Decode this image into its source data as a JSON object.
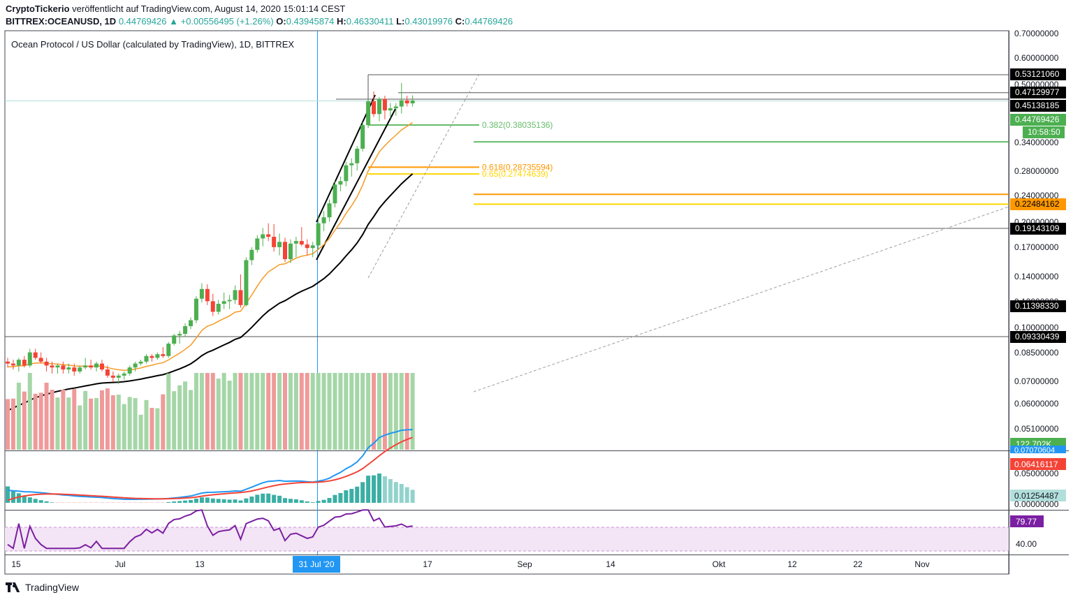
{
  "header": {
    "publisher": "CryptoTickerio",
    "published": "veröffentlicht auf TradingView.com, August 14, 2020 15:01:14 CEST",
    "symbol": "BITTREX:OCEANUSD, 1D",
    "last": "0.44769426",
    "change_arrow": "▲",
    "change": "+0.00556495 (+1.26%)",
    "o_label": "O:",
    "o": "0.43945874",
    "h_label": "H:",
    "h": "0.46330411",
    "l_label": "L:",
    "l": "0.43019976",
    "c_label": "C:",
    "c": "0.44769426"
  },
  "footer": {
    "brand": "TradingView"
  },
  "colors": {
    "up": "#26a69a",
    "down": "#ef5350",
    "candle_up": "#4caf50",
    "candle_down": "#f44336",
    "ma_short": "#f59a23",
    "ma_long": "#000000",
    "fib_382": "#66bb6a",
    "fib_618": "#ff9800",
    "fib_65": "#ffd600",
    "macd": "#2196f3",
    "signal": "#f44336",
    "rsi": "#7b1fa2"
  },
  "chart_data": {
    "type": "candlestick",
    "title": "Ocean Protocol / US Dollar (calculated by TradingView), 1D, BITTREX",
    "scale": "log",
    "x_ticks": [
      "15",
      "Jul",
      "13",
      "31 Jul '20",
      "17",
      "Sep",
      "14",
      "Okt",
      "12",
      "22",
      "Nov"
    ],
    "highlighted_x_tick": "31 Jul '20",
    "y_ticks": [
      "0.70000000",
      "0.60000000",
      "0.50000000",
      "0.34000000",
      "0.28000000",
      "0.24000000",
      "0.20000000",
      "0.17000000",
      "0.14000000",
      "0.12000000",
      "0.10000000",
      "0.08500000",
      "0.07000000",
      "0.06000000",
      "0.05100000"
    ],
    "price_labels": [
      {
        "text": "0.53121060",
        "value": 0.5312106,
        "style": "dark"
      },
      {
        "text": "0.47129977",
        "value": 0.47129977,
        "style": "dark"
      },
      {
        "text": "0.45138185",
        "value": 0.45138185,
        "style": "dark"
      },
      {
        "text": "0.44769426",
        "value": 0.44769426,
        "style": "green"
      },
      {
        "text": "10:58:50",
        "value": 0.41,
        "style": "green"
      },
      {
        "text": "0.22484162",
        "value": 0.22484162,
        "style": "orange"
      },
      {
        "text": "0.19143109",
        "value": 0.19143109,
        "style": "dark"
      },
      {
        "text": "0.11398330",
        "value": 0.1139833,
        "style": "dark"
      },
      {
        "text": "0.09330439",
        "value": 0.09330439,
        "style": "dark"
      }
    ],
    "fib_levels": [
      {
        "text": "0.382(0.38035136)",
        "value": 0.38035136
      },
      {
        "text": "0.618(0.28735594)",
        "value": 0.28735594
      },
      {
        "text": "0.65(0.27474639)",
        "value": 0.27474639
      }
    ],
    "horizontal_levels": [
      0.5312106,
      0.47129977,
      0.45138185,
      0.34,
      0.24,
      0.22484162,
      0.19143109,
      0.09330439
    ],
    "candles": [
      [
        0.079,
        0.081,
        0.076,
        0.078
      ],
      [
        0.078,
        0.08,
        0.075,
        0.077
      ],
      [
        0.077,
        0.081,
        0.074,
        0.08
      ],
      [
        0.08,
        0.082,
        0.076,
        0.077
      ],
      [
        0.077,
        0.086,
        0.076,
        0.084
      ],
      [
        0.084,
        0.086,
        0.08,
        0.081
      ],
      [
        0.081,
        0.084,
        0.078,
        0.079
      ],
      [
        0.079,
        0.081,
        0.074,
        0.077
      ],
      [
        0.077,
        0.079,
        0.073,
        0.076
      ],
      [
        0.076,
        0.078,
        0.073,
        0.077
      ],
      [
        0.077,
        0.079,
        0.073,
        0.075
      ],
      [
        0.075,
        0.078,
        0.073,
        0.076
      ],
      [
        0.076,
        0.078,
        0.072,
        0.074
      ],
      [
        0.074,
        0.077,
        0.073,
        0.076
      ],
      [
        0.076,
        0.081,
        0.075,
        0.077
      ],
      [
        0.077,
        0.08,
        0.075,
        0.076
      ],
      [
        0.076,
        0.079,
        0.074,
        0.078
      ],
      [
        0.078,
        0.08,
        0.074,
        0.075
      ],
      [
        0.075,
        0.077,
        0.071,
        0.072
      ],
      [
        0.072,
        0.074,
        0.069,
        0.071
      ],
      [
        0.071,
        0.073,
        0.068,
        0.072
      ],
      [
        0.072,
        0.074,
        0.07,
        0.073
      ],
      [
        0.073,
        0.077,
        0.072,
        0.076
      ],
      [
        0.076,
        0.079,
        0.074,
        0.078
      ],
      [
        0.078,
        0.08,
        0.077,
        0.079
      ],
      [
        0.079,
        0.083,
        0.078,
        0.082
      ],
      [
        0.082,
        0.083,
        0.079,
        0.081
      ],
      [
        0.081,
        0.084,
        0.08,
        0.083
      ],
      [
        0.083,
        0.087,
        0.081,
        0.082
      ],
      [
        0.082,
        0.09,
        0.081,
        0.089
      ],
      [
        0.089,
        0.095,
        0.088,
        0.094
      ],
      [
        0.094,
        0.097,
        0.089,
        0.095
      ],
      [
        0.095,
        0.102,
        0.093,
        0.1
      ],
      [
        0.1,
        0.106,
        0.098,
        0.104
      ],
      [
        0.104,
        0.122,
        0.102,
        0.12
      ],
      [
        0.12,
        0.133,
        0.117,
        0.128
      ],
      [
        0.128,
        0.132,
        0.115,
        0.118
      ],
      [
        0.118,
        0.124,
        0.107,
        0.11
      ],
      [
        0.11,
        0.119,
        0.108,
        0.116
      ],
      [
        0.116,
        0.125,
        0.112,
        0.118
      ],
      [
        0.118,
        0.123,
        0.112,
        0.119
      ],
      [
        0.119,
        0.131,
        0.116,
        0.127
      ],
      [
        0.127,
        0.141,
        0.113,
        0.115
      ],
      [
        0.115,
        0.158,
        0.114,
        0.155
      ],
      [
        0.155,
        0.169,
        0.15,
        0.166
      ],
      [
        0.166,
        0.183,
        0.163,
        0.179
      ],
      [
        0.179,
        0.192,
        0.17,
        0.184
      ],
      [
        0.184,
        0.198,
        0.176,
        0.181
      ],
      [
        0.181,
        0.197,
        0.164,
        0.169
      ],
      [
        0.169,
        0.185,
        0.16,
        0.175
      ],
      [
        0.175,
        0.18,
        0.153,
        0.156
      ],
      [
        0.156,
        0.178,
        0.152,
        0.173
      ],
      [
        0.173,
        0.181,
        0.158,
        0.176
      ],
      [
        0.176,
        0.193,
        0.17,
        0.172
      ],
      [
        0.172,
        0.178,
        0.16,
        0.168
      ],
      [
        0.168,
        0.175,
        0.158,
        0.171
      ],
      [
        0.171,
        0.208,
        0.166,
        0.198
      ],
      [
        0.198,
        0.215,
        0.188,
        0.206
      ],
      [
        0.206,
        0.232,
        0.2,
        0.226
      ],
      [
        0.226,
        0.262,
        0.22,
        0.256
      ],
      [
        0.256,
        0.27,
        0.245,
        0.262
      ],
      [
        0.262,
        0.298,
        0.253,
        0.291
      ],
      [
        0.291,
        0.305,
        0.27,
        0.295
      ],
      [
        0.295,
        0.331,
        0.281,
        0.325
      ],
      [
        0.325,
        0.388,
        0.319,
        0.38
      ],
      [
        0.38,
        0.452,
        0.373,
        0.445
      ],
      [
        0.445,
        0.475,
        0.401,
        0.409
      ],
      [
        0.409,
        0.458,
        0.39,
        0.452
      ],
      [
        0.452,
        0.462,
        0.395,
        0.419
      ],
      [
        0.419,
        0.44,
        0.398,
        0.425
      ],
      [
        0.425,
        0.44,
        0.405,
        0.43
      ],
      [
        0.43,
        0.503,
        0.41,
        0.448
      ],
      [
        0.448,
        0.462,
        0.43,
        0.439
      ],
      [
        0.439,
        0.463,
        0.43,
        0.4477
      ]
    ],
    "volume_label": "122.702K",
    "macd_labels": [
      "0.07070604",
      "0.06416117",
      "0.05000000",
      "0.01254487",
      "0.00000000"
    ],
    "rsi_labels": [
      "79.77",
      "40.00"
    ]
  }
}
